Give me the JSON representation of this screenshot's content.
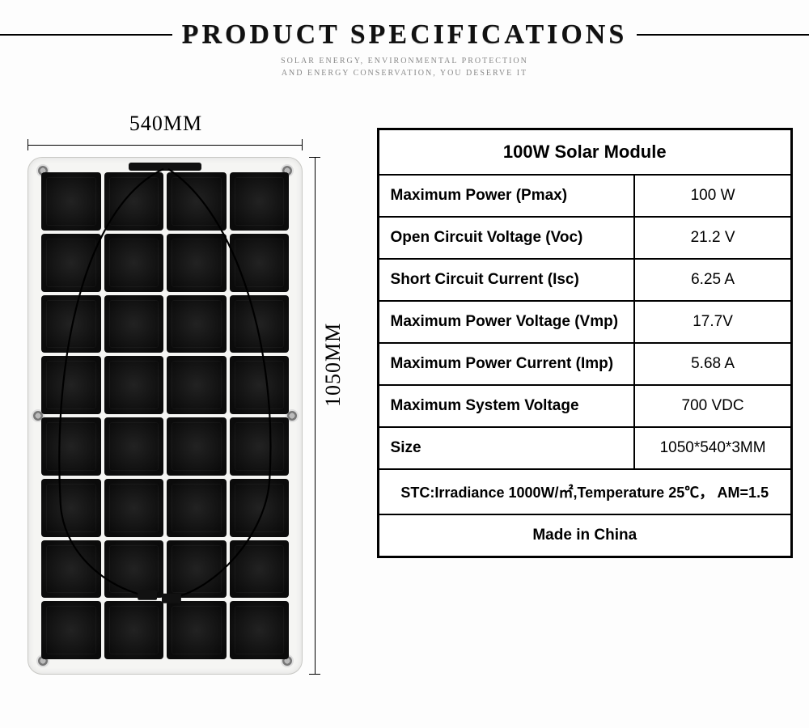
{
  "header": {
    "title": "PRODUCT SPECIFICATIONS",
    "subtitle_line1": "SOLAR ENERGY, ENVIRONMENTAL PROTECTION",
    "subtitle_line2": "AND ENERGY CONSERVATION, YOU DESERVE IT"
  },
  "diagram": {
    "width_label": "540MM",
    "height_label": "1050MM",
    "cell_cols": 4,
    "cell_rows": 8
  },
  "spec_table": {
    "title": "100W Solar Module",
    "rows": [
      {
        "k": "Maximum Power (Pmax)",
        "v": "100 W"
      },
      {
        "k": "Open Circuit Voltage (Voc)",
        "v": "21.2 V"
      },
      {
        "k": "Short Circuit Current (Isc)",
        "v": "6.25 A"
      },
      {
        "k": "Maximum Power Voltage (Vmp)",
        "v": "17.7V"
      },
      {
        "k": "Maximum Power Current (Imp)",
        "v": "5.68 A"
      },
      {
        "k": "Maximum System Voltage",
        "v": "700 VDC"
      },
      {
        "k": "Size",
        "v": "1050*540*3MM"
      }
    ],
    "footer1": "STC:Irradiance 1000W/㎡,Temperature 25℃， AM=1.5",
    "footer2": "Made in China"
  }
}
